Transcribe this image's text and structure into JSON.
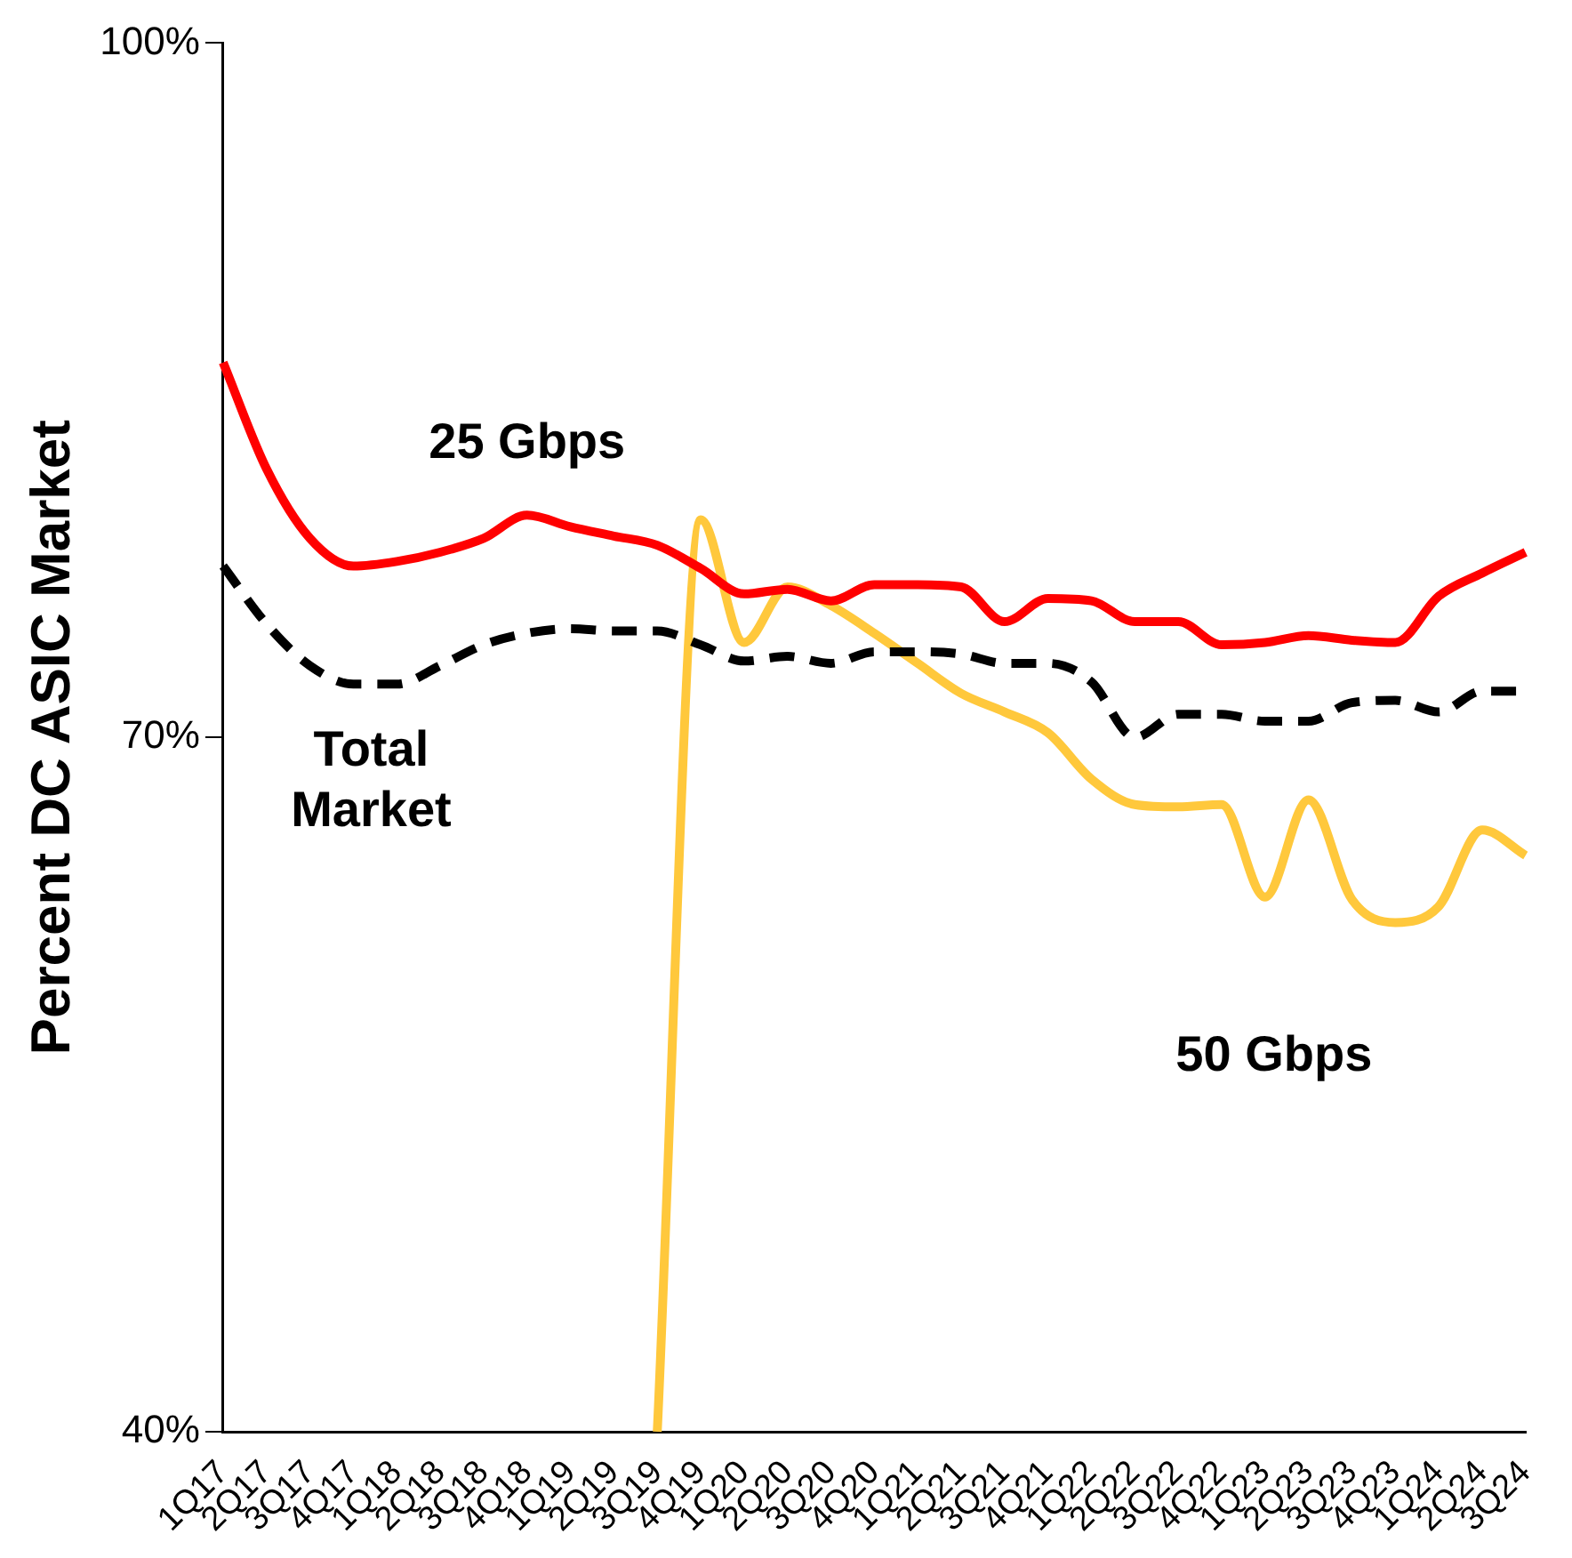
{
  "chart_data": {
    "type": "line",
    "ylabel": "Percent DC ASIC Market",
    "categories": [
      "1Q17",
      "2Q17",
      "3Q17",
      "4Q17",
      "1Q18",
      "2Q18",
      "3Q18",
      "4Q18",
      "1Q19",
      "2Q19",
      "3Q19",
      "4Q19",
      "1Q20",
      "2Q20",
      "3Q20",
      "4Q20",
      "1Q21",
      "2Q21",
      "3Q21",
      "4Q21",
      "1Q22",
      "2Q22",
      "3Q22",
      "4Q22",
      "1Q23",
      "2Q23",
      "3Q23",
      "4Q23",
      "1Q24",
      "2Q24",
      "3Q24"
    ],
    "series": [
      {
        "name": "25 Gbps",
        "color": "#ff0000",
        "line_style": "solid",
        "values": [
          86.2,
          81.6,
          78.6,
          77.4,
          77.6,
          78.0,
          78.6,
          79.6,
          79.1,
          78.7,
          78.3,
          77.3,
          76.2,
          76.4,
          75.9,
          76.6,
          76.6,
          76.5,
          75.0,
          76.0,
          75.9,
          75.0,
          75.0,
          74.0,
          74.1,
          74.4,
          74.2,
          74.1,
          76.1,
          77.1,
          78.0
        ]
      },
      {
        "name": "Total Market",
        "color": "#000000",
        "line_style": "dashed",
        "values": [
          77.4,
          74.9,
          73.1,
          72.3,
          72.3,
          73.1,
          74.0,
          74.5,
          74.7,
          74.6,
          74.6,
          74.0,
          73.3,
          73.5,
          73.2,
          73.7,
          73.7,
          73.6,
          73.2,
          73.2,
          72.4,
          70.0,
          71.0,
          71.0,
          70.7,
          70.7,
          71.5,
          71.6,
          71.1,
          72.0,
          72.0
        ]
      },
      {
        "name": "50 Gbps",
        "color": "#ffc83c",
        "line_style": "solid",
        "values": [
          null,
          null,
          null,
          null,
          null,
          null,
          null,
          null,
          null,
          null,
          40,
          79.4,
          74.1,
          76.5,
          75.7,
          74.5,
          73.2,
          71.9,
          71.1,
          70.2,
          68.2,
          67.1,
          67.0,
          67.1,
          63.1,
          67.3,
          63.0,
          62.0,
          62.7,
          66.0,
          64.9
        ]
      }
    ],
    "ylim": [
      40,
      100
    ],
    "yticks": [
      {
        "value": 40,
        "label": "40%"
      },
      {
        "value": 70,
        "label": "70%"
      },
      {
        "value": 100,
        "label": "100%"
      }
    ],
    "grid": false,
    "legend": false,
    "marker": "none"
  }
}
